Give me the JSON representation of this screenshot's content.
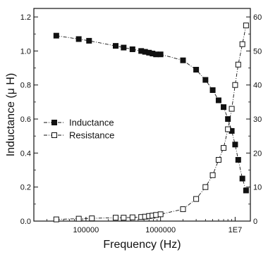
{
  "chart_data": {
    "type": "scatter",
    "xlabel": "Frequency (Hz)",
    "ylabel": "Inductance (μ H)",
    "xscale": "log",
    "xlim": [
      20000,
      16000000
    ],
    "ylim": [
      0,
      1.25
    ],
    "y2lim": [
      0,
      62.5
    ],
    "x_tick_values": [
      100000,
      1000000,
      10000000
    ],
    "x_tick_labels": [
      "100000",
      "1000000",
      "1E7"
    ],
    "y_tick_values": [
      0.0,
      0.2,
      0.4,
      0.6,
      0.8,
      1.0,
      1.2
    ],
    "y_tick_labels": [
      "0.0",
      "0.2",
      "0.4",
      "0.6",
      "0.8",
      "1.0",
      "1.2"
    ],
    "y2_tick_values": [
      0,
      10,
      20,
      30,
      40,
      50,
      60
    ],
    "y2_tick_labels": [
      "0",
      "10",
      "20",
      "30",
      "40",
      "50",
      "60"
    ],
    "legend_position": "center-left",
    "grid": false,
    "series": [
      {
        "name": "Inductance",
        "marker": "filled-square",
        "line": "dash-dot",
        "axis": "left",
        "color": "#111111",
        "x": [
          40000,
          80000,
          110000,
          250000,
          320000,
          420000,
          550000,
          620000,
          700000,
          780000,
          870000,
          1000000,
          2000000,
          3000000,
          4000000,
          5000000,
          6000000,
          7000000,
          8000000,
          9000000,
          10000000,
          11000000,
          12500000,
          14000000
        ],
        "y": [
          1.09,
          1.07,
          1.06,
          1.03,
          1.02,
          1.01,
          1.0,
          0.995,
          0.99,
          0.985,
          0.98,
          0.98,
          0.945,
          0.89,
          0.83,
          0.77,
          0.71,
          0.67,
          0.6,
          0.53,
          0.45,
          0.36,
          0.25,
          0.18
        ]
      },
      {
        "name": "Resistance",
        "marker": "open-square",
        "line": "dash-dot",
        "axis": "right",
        "color": "#111111",
        "x": [
          40000,
          80000,
          120000,
          250000,
          320000,
          420000,
          550000,
          620000,
          700000,
          780000,
          870000,
          1000000,
          2000000,
          3000000,
          4000000,
          5000000,
          6000000,
          7000000,
          8000000,
          9000000,
          10000000,
          11000000,
          12500000,
          14000000
        ],
        "y": [
          0.5,
          0.7,
          0.8,
          1.0,
          1.0,
          1.1,
          1.2,
          1.3,
          1.5,
          1.6,
          1.8,
          2.0,
          3.5,
          6.5,
          10.0,
          13.5,
          18.0,
          21.5,
          27.0,
          33.0,
          40.0,
          46.0,
          52.0,
          57.5
        ]
      }
    ]
  }
}
